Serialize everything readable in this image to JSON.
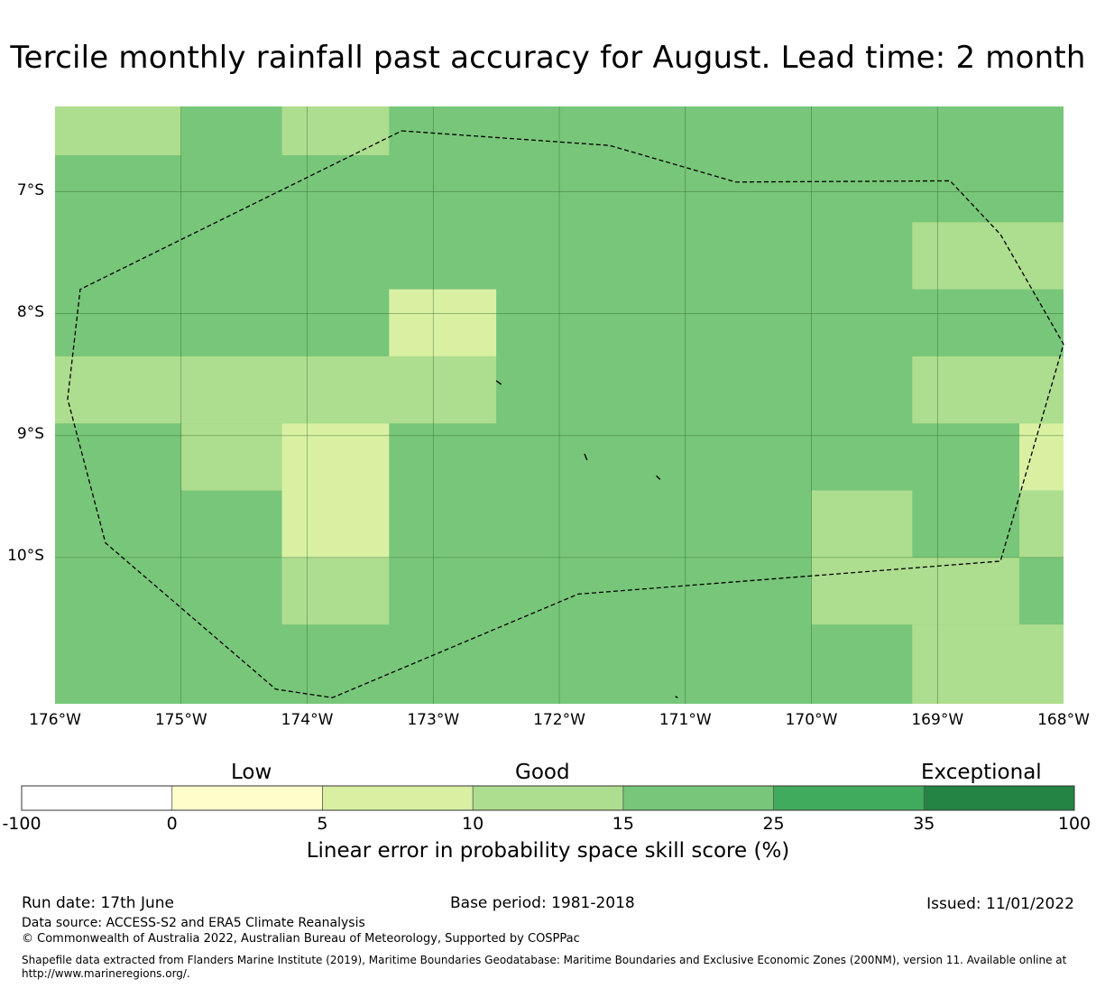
{
  "title": "Tercile monthly rainfall past accuracy for August. Lead time: 2 month",
  "map": {
    "lon_range": [
      -176,
      -168
    ],
    "lat_range": [
      -11.2,
      -6.3
    ],
    "lon_labels": [
      "176°W",
      "175°W",
      "174°W",
      "173°W",
      "172°W",
      "171°W",
      "170°W",
      "169°W",
      "168°W"
    ],
    "lat_labels": [
      "7°S",
      "8°S",
      "9°S",
      "10°S"
    ],
    "lat_values": [
      -7,
      -8,
      -9,
      -10
    ],
    "lon_values": [
      -176,
      -175,
      -174,
      -173,
      -172,
      -171,
      -170,
      -169,
      -168
    ],
    "base_color": "#78c679",
    "cells": [
      {
        "lon0": -176.0,
        "lon1": -175.0,
        "lat0": -6.7,
        "lat1": -6.3,
        "class": "10-15"
      },
      {
        "lon0": -174.2,
        "lon1": -173.35,
        "lat0": -6.7,
        "lat1": -6.3,
        "class": "10-15"
      },
      {
        "lon0": -169.2,
        "lon1": -167.9,
        "lat0": -7.8,
        "lat1": -7.25,
        "class": "10-15"
      },
      {
        "lon0": -173.35,
        "lon1": -172.5,
        "lat0": -8.35,
        "lat1": -7.8,
        "class": "5-10"
      },
      {
        "lon0": -176.0,
        "lon1": -172.5,
        "lat0": -8.9,
        "lat1": -8.35,
        "class": "10-15"
      },
      {
        "lon0": -169.2,
        "lon1": -167.9,
        "lat0": -8.9,
        "lat1": -8.35,
        "class": "10-15"
      },
      {
        "lon0": -175.0,
        "lon1": -174.2,
        "lat0": -9.45,
        "lat1": -8.9,
        "class": "10-15"
      },
      {
        "lon0": -174.2,
        "lon1": -173.35,
        "lat0": -10.0,
        "lat1": -8.9,
        "class": "5-10"
      },
      {
        "lon0": -168.35,
        "lon1": -167.9,
        "lat0": -9.45,
        "lat1": -8.9,
        "class": "5-10"
      },
      {
        "lon0": -168.35,
        "lon1": -167.9,
        "lat0": -10.0,
        "lat1": -9.45,
        "class": "10-15"
      },
      {
        "lon0": -170.0,
        "lon1": -169.2,
        "lat0": -10.0,
        "lat1": -9.45,
        "class": "10-15"
      },
      {
        "lon0": -174.2,
        "lon1": -173.35,
        "lat0": -10.55,
        "lat1": -10.0,
        "class": "10-15"
      },
      {
        "lon0": -170.0,
        "lon1": -168.35,
        "lat0": -10.55,
        "lat1": -10.0,
        "class": "10-15"
      },
      {
        "lon0": -169.2,
        "lon1": -167.9,
        "lat0": -11.2,
        "lat1": -10.55,
        "class": "10-15"
      }
    ],
    "eez_boundary": [
      [
        -173.25,
        -6.5
      ],
      [
        -171.6,
        -6.62
      ],
      [
        -170.6,
        -6.92
      ],
      [
        -168.9,
        -6.91
      ],
      [
        -168.5,
        -7.35
      ],
      [
        -168.0,
        -8.25
      ],
      [
        -168.5,
        -10.03
      ],
      [
        -171.85,
        -10.3
      ],
      [
        -173.8,
        -11.15
      ],
      [
        -174.25,
        -11.08
      ],
      [
        -175.6,
        -9.88
      ],
      [
        -175.9,
        -8.7
      ],
      [
        -175.8,
        -7.8
      ],
      [
        -173.25,
        -6.5
      ]
    ],
    "islands": [
      [
        [
          -172.5,
          -8.55
        ],
        [
          -172.46,
          -8.58
        ]
      ],
      [
        [
          -171.8,
          -9.15
        ],
        [
          -171.78,
          -9.2
        ]
      ],
      [
        [
          -171.23,
          -9.33
        ],
        [
          -171.2,
          -9.36
        ]
      ],
      [
        [
          -171.08,
          -11.14
        ],
        [
          -171.06,
          -11.15
        ]
      ]
    ]
  },
  "colorbar": {
    "categories": [
      "Low",
      "Good",
      "Exceptional"
    ],
    "bins": [
      {
        "range": "-100-0",
        "color": "#ffffff"
      },
      {
        "range": "0-5",
        "color": "#ffffcc"
      },
      {
        "range": "5-10",
        "color": "#d9f0a3"
      },
      {
        "range": "10-15",
        "color": "#addd8e"
      },
      {
        "range": "15-25",
        "color": "#78c679"
      },
      {
        "range": "25-35",
        "color": "#41ab5d"
      },
      {
        "range": "35-100",
        "color": "#238443"
      }
    ],
    "ticks": [
      "-100",
      "0",
      "5",
      "10",
      "15",
      "25",
      "35",
      "100"
    ],
    "label": "Linear error in probability space skill score (%)"
  },
  "footer": {
    "run_date": "Run date: 17th June",
    "base_period": "Base period: 1981-2018",
    "issued": "Issued: 11/01/2022",
    "data_source": "Data source: ACCESS-S2 and ERA5 Climate Reanalysis",
    "copyright": "© Commonwealth of Australia 2022, Australian Bureau of Meteorology, Supported by COSPPac",
    "shapefile_1": "Shapefile data extracted from Flanders Marine Institute (2019), Maritime Boundaries Geodatabase: Maritime Boundaries and Exclusive Economic Zones (200NM), version 11. Available online at",
    "shapefile_2": "http://www.marineregions.org/."
  }
}
